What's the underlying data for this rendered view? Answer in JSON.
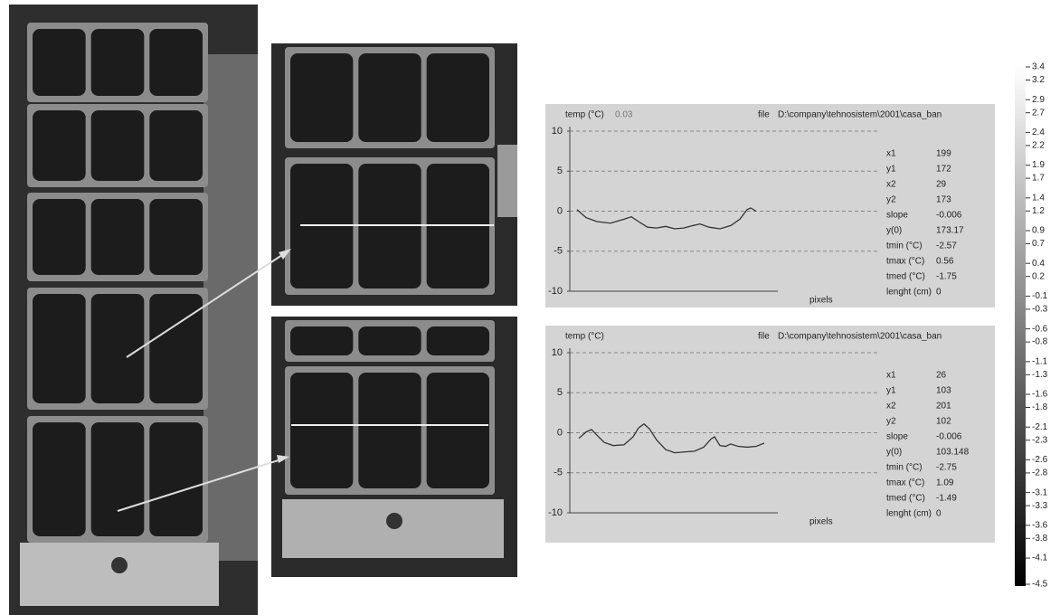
{
  "chart_data": [
    {
      "type": "line",
      "y_label": "temp (°C)",
      "cursor_value": "0.03",
      "file_label": "file",
      "file": "D:\\company\\tehnosistem\\2001\\casa_ban",
      "x_label": "pixels",
      "ylim": [
        -10,
        10
      ],
      "yticks": [
        10,
        5,
        0,
        -5,
        -10
      ],
      "xlim": [
        -8,
        222
      ],
      "grid": true,
      "color": "#333333",
      "x": [
        0,
        10,
        22,
        37,
        52,
        60,
        68,
        78,
        88,
        98,
        108,
        118,
        128,
        136,
        146,
        158,
        170,
        180,
        188,
        192,
        198
      ],
      "values": [
        0.2,
        -0.8,
        -1.3,
        -1.5,
        -1.0,
        -0.7,
        -1.3,
        -2.0,
        -2.1,
        -1.9,
        -2.2,
        -2.1,
        -1.8,
        -1.6,
        -2.0,
        -2.2,
        -1.8,
        -1.0,
        0.2,
        0.4,
        0.0
      ],
      "params": {
        "labels": [
          "x1",
          "y1",
          "x2",
          "y2",
          "slope",
          "y(0)",
          "tmin (°C)",
          "tmax (°C)",
          "tmed (°C)",
          "lenght (cm)"
        ],
        "values": [
          199,
          172,
          29,
          173,
          -0.006,
          173.17,
          -2.57,
          0.56,
          -1.75,
          0
        ]
      }
    },
    {
      "type": "line",
      "y_label": "temp (°C)",
      "file_label": "file",
      "file": "D:\\company\\tehnosistem\\2001\\casa_ban",
      "x_label": "pixels",
      "ylim": [
        -10,
        10
      ],
      "yticks": [
        10,
        5,
        0,
        -5,
        -10
      ],
      "xlim": [
        -10,
        220
      ],
      "grid": true,
      "color": "#333333",
      "x": [
        0,
        8,
        14,
        20,
        28,
        38,
        50,
        60,
        66,
        72,
        78,
        86,
        96,
        106,
        116,
        128,
        138,
        146,
        150,
        156,
        162,
        168,
        176,
        186,
        196,
        205
      ],
      "values": [
        -0.7,
        0.1,
        0.4,
        -0.3,
        -1.2,
        -1.6,
        -1.5,
        -0.5,
        0.6,
        1.1,
        0.5,
        -0.9,
        -2.1,
        -2.5,
        -2.4,
        -2.3,
        -1.8,
        -0.8,
        -0.5,
        -1.6,
        -1.7,
        -1.4,
        -1.7,
        -1.8,
        -1.7,
        -1.3
      ],
      "params": {
        "labels": [
          "x1",
          "y1",
          "x2",
          "y2",
          "slope",
          "y(0)",
          "tmin (°C)",
          "tmax (°C)",
          "tmed (°C)",
          "lenght (cm)"
        ],
        "values": [
          26,
          103,
          201,
          102,
          -0.006,
          103.148,
          -2.75,
          1.09,
          -1.49,
          0
        ]
      }
    },
    {
      "type": "colorbar",
      "ylim": [
        -4.5,
        3.4
      ],
      "yticks": [
        3.4,
        3.2,
        2.9,
        2.7,
        2.4,
        2.2,
        1.9,
        1.7,
        1.4,
        1.2,
        0.9,
        0.7,
        0.4,
        0.2,
        -0.1,
        -0.3,
        -0.6,
        -0.8,
        -1.1,
        -1.3,
        -1.6,
        -1.8,
        -2.1,
        -2.3,
        -2.6,
        -2.8,
        -3.1,
        -3.3,
        -3.6,
        -3.8,
        -4.1,
        -4.5
      ]
    }
  ]
}
